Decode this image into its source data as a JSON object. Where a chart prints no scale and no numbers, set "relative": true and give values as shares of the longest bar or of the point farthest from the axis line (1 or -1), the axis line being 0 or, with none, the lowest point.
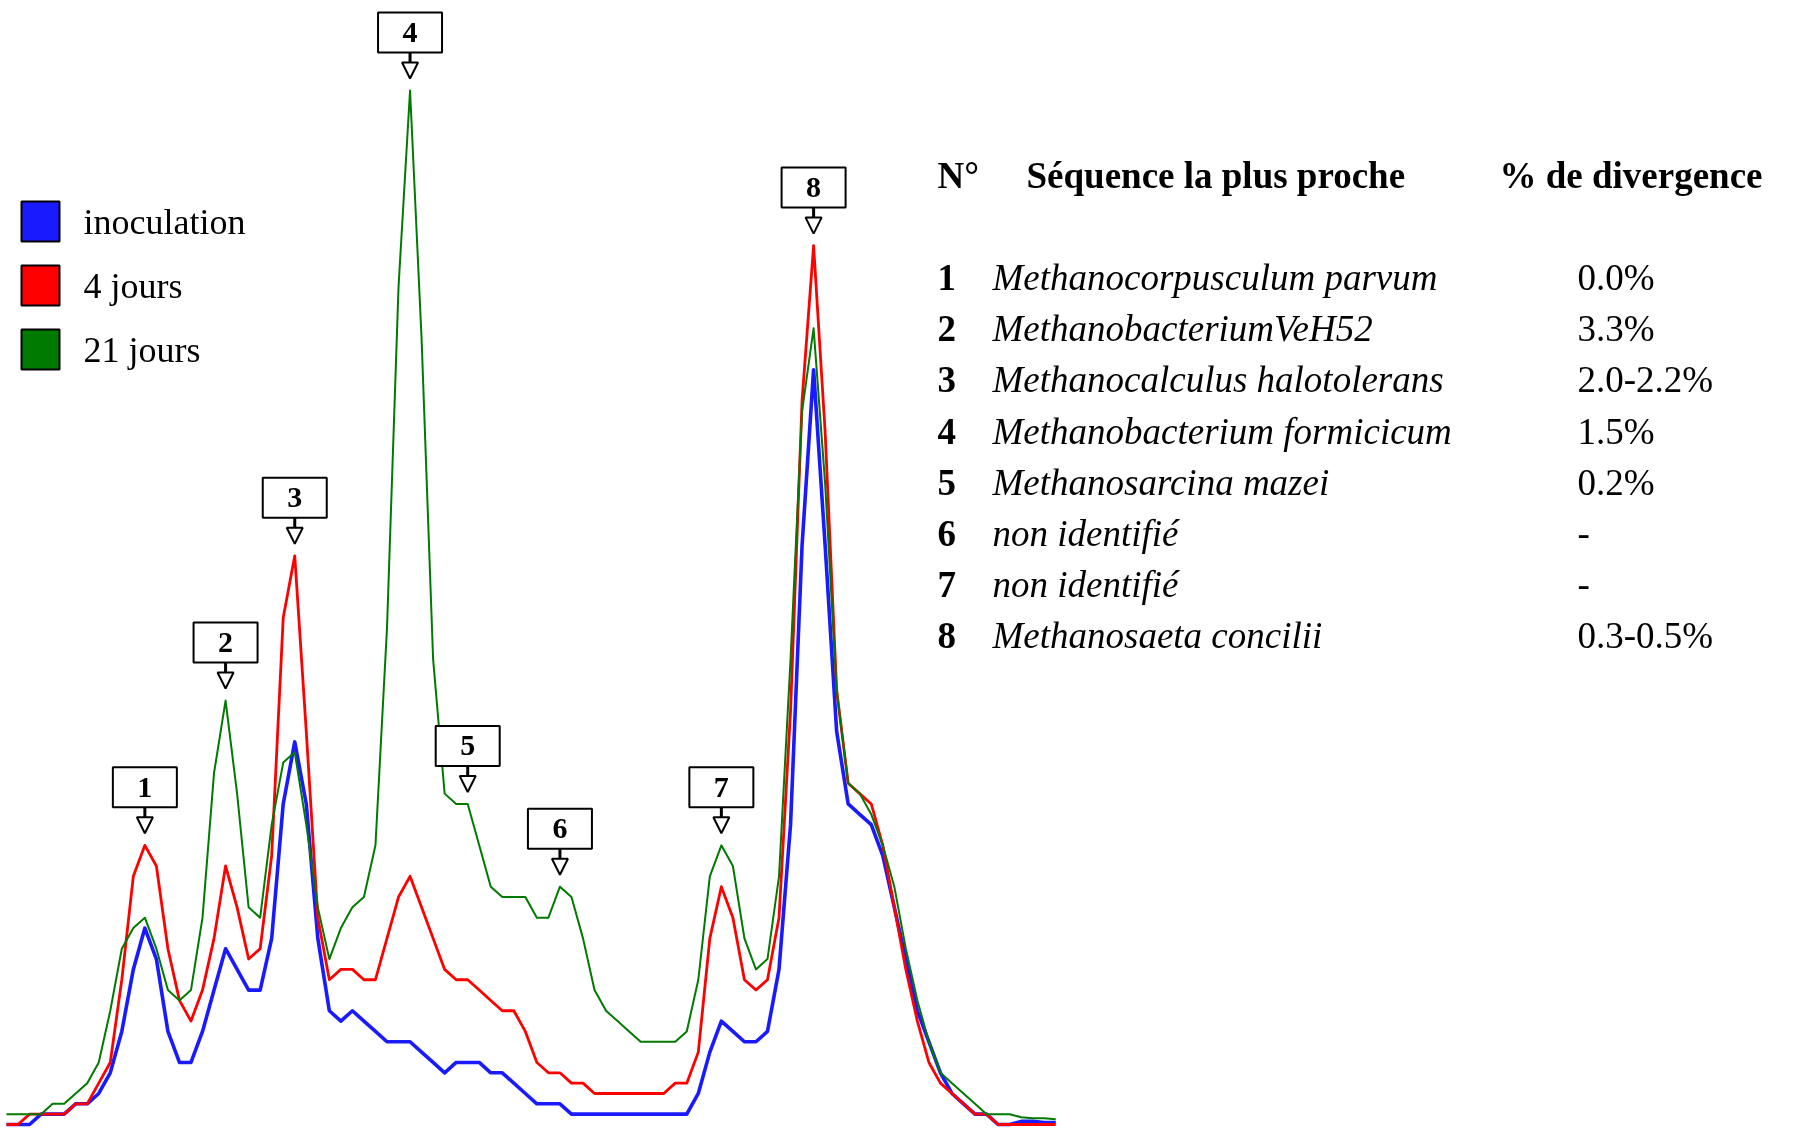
{
  "chart_data": {
    "type": "line",
    "relative": true,
    "legend": "top left",
    "grid": false,
    "categories": [
      null,
      null,
      null,
      null,
      null,
      null,
      null,
      null,
      null,
      null,
      null,
      null,
      null,
      null,
      null,
      null,
      null,
      null,
      null,
      null,
      null,
      null,
      null,
      null,
      null,
      null,
      null,
      null,
      null,
      null,
      null,
      null,
      null,
      null,
      null,
      null,
      null,
      null,
      null,
      null,
      null,
      null,
      null,
      null,
      null,
      null,
      null,
      null,
      null,
      null,
      null,
      null,
      null,
      null,
      null,
      null,
      null,
      null,
      null,
      null,
      null,
      null,
      null,
      null,
      null,
      null,
      null,
      null,
      null,
      null,
      null,
      null,
      null,
      null,
      null,
      null,
      null,
      null,
      null,
      null,
      null,
      null,
      null,
      null,
      null,
      null,
      null,
      null,
      null,
      null,
      null,
      null
    ],
    "series": [
      {
        "name": "inoculation",
        "color": "#1a1aff",
        "values": [
          0.0,
          0.0,
          0.0,
          0.01,
          0.01,
          0.01,
          0.02,
          0.02,
          0.03,
          0.05,
          0.09,
          0.15,
          0.19,
          0.16,
          0.09,
          0.06,
          0.06,
          0.09,
          0.13,
          0.17,
          0.15,
          0.13,
          0.13,
          0.18,
          0.31,
          0.37,
          0.31,
          0.18,
          0.11,
          0.1,
          0.11,
          0.1,
          0.09,
          0.08,
          0.08,
          0.08,
          0.07,
          0.06,
          0.05,
          0.06,
          0.06,
          0.06,
          0.05,
          0.05,
          0.04,
          0.03,
          0.02,
          0.02,
          0.02,
          0.01,
          0.01,
          0.01,
          0.01,
          0.01,
          0.01,
          0.01,
          0.01,
          0.01,
          0.01,
          0.01,
          0.03,
          0.07,
          0.1,
          0.09,
          0.08,
          0.08,
          0.09,
          0.15,
          0.29,
          0.56,
          0.73,
          0.56,
          0.38,
          0.31,
          0.3,
          0.29,
          0.26,
          0.21,
          0.16,
          0.11,
          0.08,
          0.05,
          0.03,
          0.02,
          0.01,
          0.01,
          0.0,
          0.0,
          0.003,
          0.003,
          0.002,
          0.002
        ]
      },
      {
        "name": "4 jours",
        "color": "#ff0000",
        "values": [
          0.0,
          0.0,
          0.01,
          0.01,
          0.01,
          0.01,
          0.02,
          0.02,
          0.04,
          0.06,
          0.14,
          0.24,
          0.27,
          0.25,
          0.17,
          0.12,
          0.1,
          0.13,
          0.18,
          0.25,
          0.21,
          0.16,
          0.17,
          0.26,
          0.49,
          0.55,
          0.38,
          0.2,
          0.14,
          0.15,
          0.15,
          0.14,
          0.14,
          0.18,
          0.22,
          0.24,
          0.21,
          0.18,
          0.15,
          0.14,
          0.14,
          0.13,
          0.12,
          0.11,
          0.11,
          0.09,
          0.06,
          0.05,
          0.05,
          0.04,
          0.04,
          0.03,
          0.03,
          0.03,
          0.03,
          0.03,
          0.03,
          0.03,
          0.04,
          0.04,
          0.07,
          0.18,
          0.23,
          0.2,
          0.14,
          0.13,
          0.14,
          0.2,
          0.4,
          0.7,
          0.85,
          0.67,
          0.42,
          0.33,
          0.32,
          0.31,
          0.27,
          0.21,
          0.15,
          0.1,
          0.06,
          0.04,
          0.03,
          0.02,
          0.01,
          0.01,
          0.0,
          0.0,
          0.0,
          0.0,
          0.0,
          0.0
        ]
      },
      {
        "name": "21 jours",
        "color": "#007a00",
        "values": [
          0.01,
          0.01,
          0.01,
          0.01,
          0.02,
          0.02,
          0.03,
          0.04,
          0.06,
          0.11,
          0.17,
          0.19,
          0.2,
          0.17,
          0.13,
          0.12,
          0.13,
          0.2,
          0.34,
          0.41,
          0.32,
          0.21,
          0.2,
          0.29,
          0.35,
          0.36,
          0.29,
          0.21,
          0.16,
          0.19,
          0.21,
          0.22,
          0.27,
          0.48,
          0.81,
          1.0,
          0.76,
          0.45,
          0.32,
          0.31,
          0.31,
          0.27,
          0.23,
          0.22,
          0.22,
          0.22,
          0.2,
          0.2,
          0.23,
          0.22,
          0.18,
          0.13,
          0.11,
          0.1,
          0.09,
          0.08,
          0.08,
          0.08,
          0.08,
          0.09,
          0.14,
          0.24,
          0.27,
          0.25,
          0.18,
          0.15,
          0.16,
          0.24,
          0.45,
          0.69,
          0.77,
          0.62,
          0.42,
          0.33,
          0.32,
          0.3,
          0.27,
          0.23,
          0.17,
          0.12,
          0.08,
          0.05,
          0.04,
          0.03,
          0.02,
          0.01,
          0.01,
          0.01,
          0.007,
          0.006,
          0.006,
          0.005
        ]
      }
    ],
    "annotations": [
      {
        "text": "1",
        "y": 0.27
      },
      {
        "text": "2",
        "y": 0.41
      },
      {
        "text": "3",
        "y": 0.55
      },
      {
        "text": "4",
        "y": 1.0
      },
      {
        "text": "5",
        "y": 0.31
      },
      {
        "text": "6",
        "y": 0.23
      },
      {
        "text": "7",
        "y": 0.27
      },
      {
        "text": "8",
        "y": 0.85
      },
      "N°",
      "Séquence la plus proche",
      "% de divergence",
      "1",
      "Methanocorpusculum parvum",
      "0.0%",
      "2",
      "MethanobacteriumVeH52",
      "3.3%",
      "3",
      "Methanocalculus halotolerans",
      "2.0-2.2%",
      "4",
      "Methanobacterium formicicum",
      "1.5%",
      "5",
      "Methanosarcina mazei",
      "0.2%",
      "6",
      "non identifié",
      "-",
      "7",
      "non identifié",
      "-",
      "8",
      "Methanosaeta concilii",
      "0.3-0.5%"
    ]
  }
}
